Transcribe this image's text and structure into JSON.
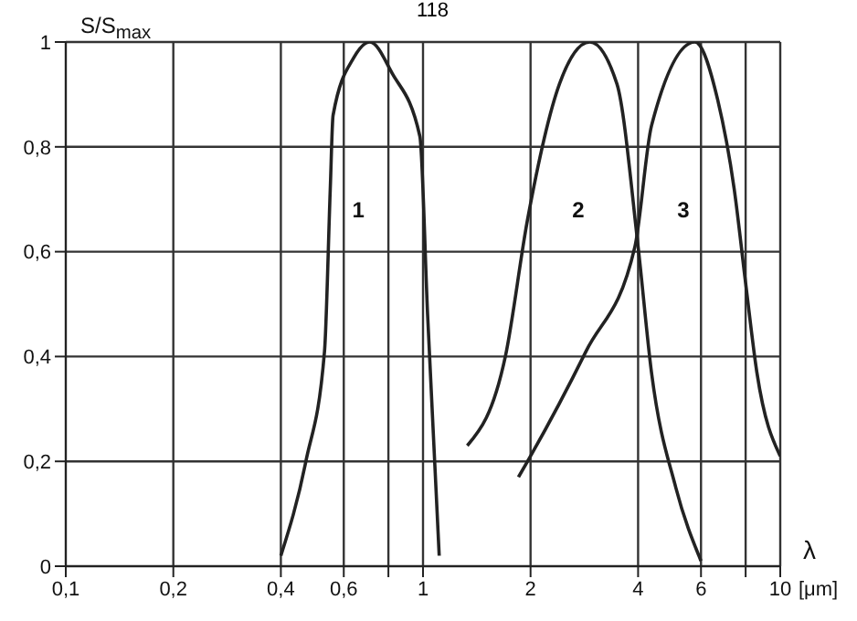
{
  "chart_data": {
    "type": "line",
    "ylabel": "S/S$_{max}$",
    "xlabel": "λ [μm]",
    "log": "x",
    "grid": true,
    "legend": false,
    "marker": "none",
    "line_style": "solid",
    "xlim": [
      0.1,
      10
    ],
    "xticks": [
      {
        "value": 0.1,
        "label": "0,1"
      },
      {
        "value": 0.2,
        "label": "0,2"
      },
      {
        "value": 0.4,
        "label": "0,4"
      },
      {
        "value": 0.6,
        "label": "0,6"
      },
      {
        "value": 0.8,
        "label": null
      },
      1,
      2,
      4,
      6,
      {
        "value": 8,
        "label": null
      },
      10
    ],
    "ylim": [
      0,
      1
    ],
    "yticks": [
      0,
      {
        "value": 0.2,
        "label": "0,2"
      },
      {
        "value": 0.4,
        "label": "0,4"
      },
      {
        "value": 0.6,
        "label": "0,6"
      },
      {
        "value": 0.8,
        "label": "0,8"
      },
      1
    ],
    "series": [
      {
        "name": "1",
        "color": "#222222",
        "x": [
          0.4,
          0.47,
          0.53,
          0.55,
          0.56,
          0.64,
          0.71,
          0.82,
          0.98,
          1.03,
          1.11
        ],
        "values": [
          0.02,
          0.2,
          0.41,
          0.72,
          0.86,
          0.97,
          1.0,
          0.94,
          0.82,
          0.48,
          0.02
        ]
      },
      {
        "name": "2",
        "color": "#222222",
        "x": [
          1.33,
          1.7,
          1.96,
          2.41,
          2.93,
          3.49,
          4.0,
          4.36,
          5.1,
          6.0
        ],
        "values": [
          0.23,
          0.4,
          0.66,
          0.92,
          1.0,
          0.92,
          0.61,
          0.37,
          0.15,
          0.01
        ]
      },
      {
        "name": "3",
        "color": "#222222",
        "x": [
          1.85,
          2.0,
          2.86,
          3.92,
          4.36,
          5.77,
          6.68,
          7.43,
          8.0,
          8.6,
          10.0
        ],
        "values": [
          0.17,
          0.21,
          0.41,
          0.61,
          0.84,
          1.0,
          0.89,
          0.72,
          0.54,
          0.37,
          0.21
        ]
      }
    ],
    "annotations": [
      "118"
    ]
  }
}
